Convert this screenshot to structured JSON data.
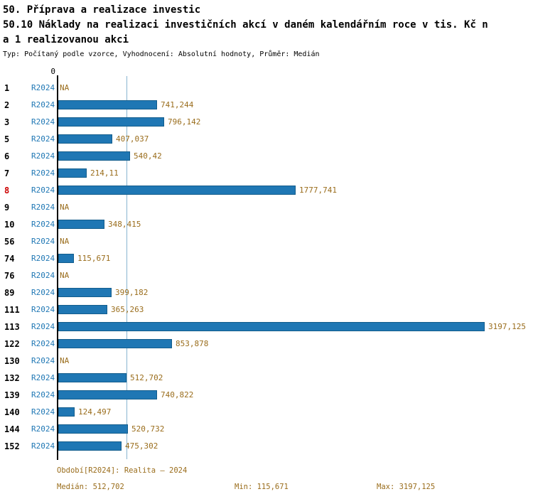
{
  "header": {
    "title_line1": "50. Příprava a realizace investic",
    "title_line2": "50.10 Náklady na realizaci investičních akcí v daném kalendářním roce v tis. Kč n",
    "title_line3": "a 1 realizovanou akci",
    "subtitle": "Typ: Počítaný podle vzorce, Vyhodnocení: Absolutní hodnoty, Průměr: Medián"
  },
  "chart_data": {
    "type": "bar",
    "orientation": "horizontal",
    "title": "50.10 Náklady na realizaci investičních akcí v daném kalendářním roce v tis. Kč na 1 realizovanou akci",
    "series_label": "R2024",
    "axis_zero_label": "0",
    "xlim": [
      0,
      3197.125
    ],
    "grid": false,
    "median": 512.702,
    "min": 115.671,
    "max": 3197.125,
    "categories": [
      "1",
      "2",
      "3",
      "5",
      "6",
      "7",
      "8",
      "9",
      "10",
      "56",
      "74",
      "76",
      "89",
      "111",
      "113",
      "122",
      "130",
      "132",
      "139",
      "140",
      "144",
      "152"
    ],
    "rows": [
      {
        "id": "1",
        "value": null,
        "display": "NA",
        "highlight": false
      },
      {
        "id": "2",
        "value": 741.244,
        "display": "741,244",
        "highlight": false
      },
      {
        "id": "3",
        "value": 796.142,
        "display": "796,142",
        "highlight": false
      },
      {
        "id": "5",
        "value": 407.037,
        "display": "407,037",
        "highlight": false
      },
      {
        "id": "6",
        "value": 540.42,
        "display": "540,42",
        "highlight": false
      },
      {
        "id": "7",
        "value": 214.11,
        "display": "214,11",
        "highlight": false
      },
      {
        "id": "8",
        "value": 1777.741,
        "display": "1777,741",
        "highlight": true
      },
      {
        "id": "9",
        "value": null,
        "display": "NA",
        "highlight": false
      },
      {
        "id": "10",
        "value": 348.415,
        "display": "348,415",
        "highlight": false
      },
      {
        "id": "56",
        "value": null,
        "display": "NA",
        "highlight": false
      },
      {
        "id": "74",
        "value": 115.671,
        "display": "115,671",
        "highlight": false
      },
      {
        "id": "76",
        "value": null,
        "display": "NA",
        "highlight": false
      },
      {
        "id": "89",
        "value": 399.182,
        "display": "399,182",
        "highlight": false
      },
      {
        "id": "111",
        "value": 365.263,
        "display": "365,263",
        "highlight": false
      },
      {
        "id": "113",
        "value": 3197.125,
        "display": "3197,125",
        "highlight": false
      },
      {
        "id": "122",
        "value": 853.878,
        "display": "853,878",
        "highlight": false
      },
      {
        "id": "130",
        "value": null,
        "display": "NA",
        "highlight": false
      },
      {
        "id": "132",
        "value": 512.702,
        "display": "512,702",
        "highlight": false
      },
      {
        "id": "139",
        "value": 740.822,
        "display": "740,822",
        "highlight": false
      },
      {
        "id": "140",
        "value": 124.497,
        "display": "124,497",
        "highlight": false
      },
      {
        "id": "144",
        "value": 520.732,
        "display": "520,732",
        "highlight": false
      },
      {
        "id": "152",
        "value": 475.302,
        "display": "475,302",
        "highlight": false
      }
    ]
  },
  "footer": {
    "period_label": "Období[R2024]: Realita – 2024",
    "median_label": "Medián: 512,702",
    "min_label": "Min: 115,671",
    "max_label": "Max: 3197,125"
  },
  "colors": {
    "bar": "#1f77b4",
    "bar_border": "#135d8c",
    "series_text": "#1f77b4",
    "value_text": "#9a6d1c",
    "highlight_text": "#cc0000",
    "median_line": "#88b4d0",
    "axis": "#000000"
  }
}
